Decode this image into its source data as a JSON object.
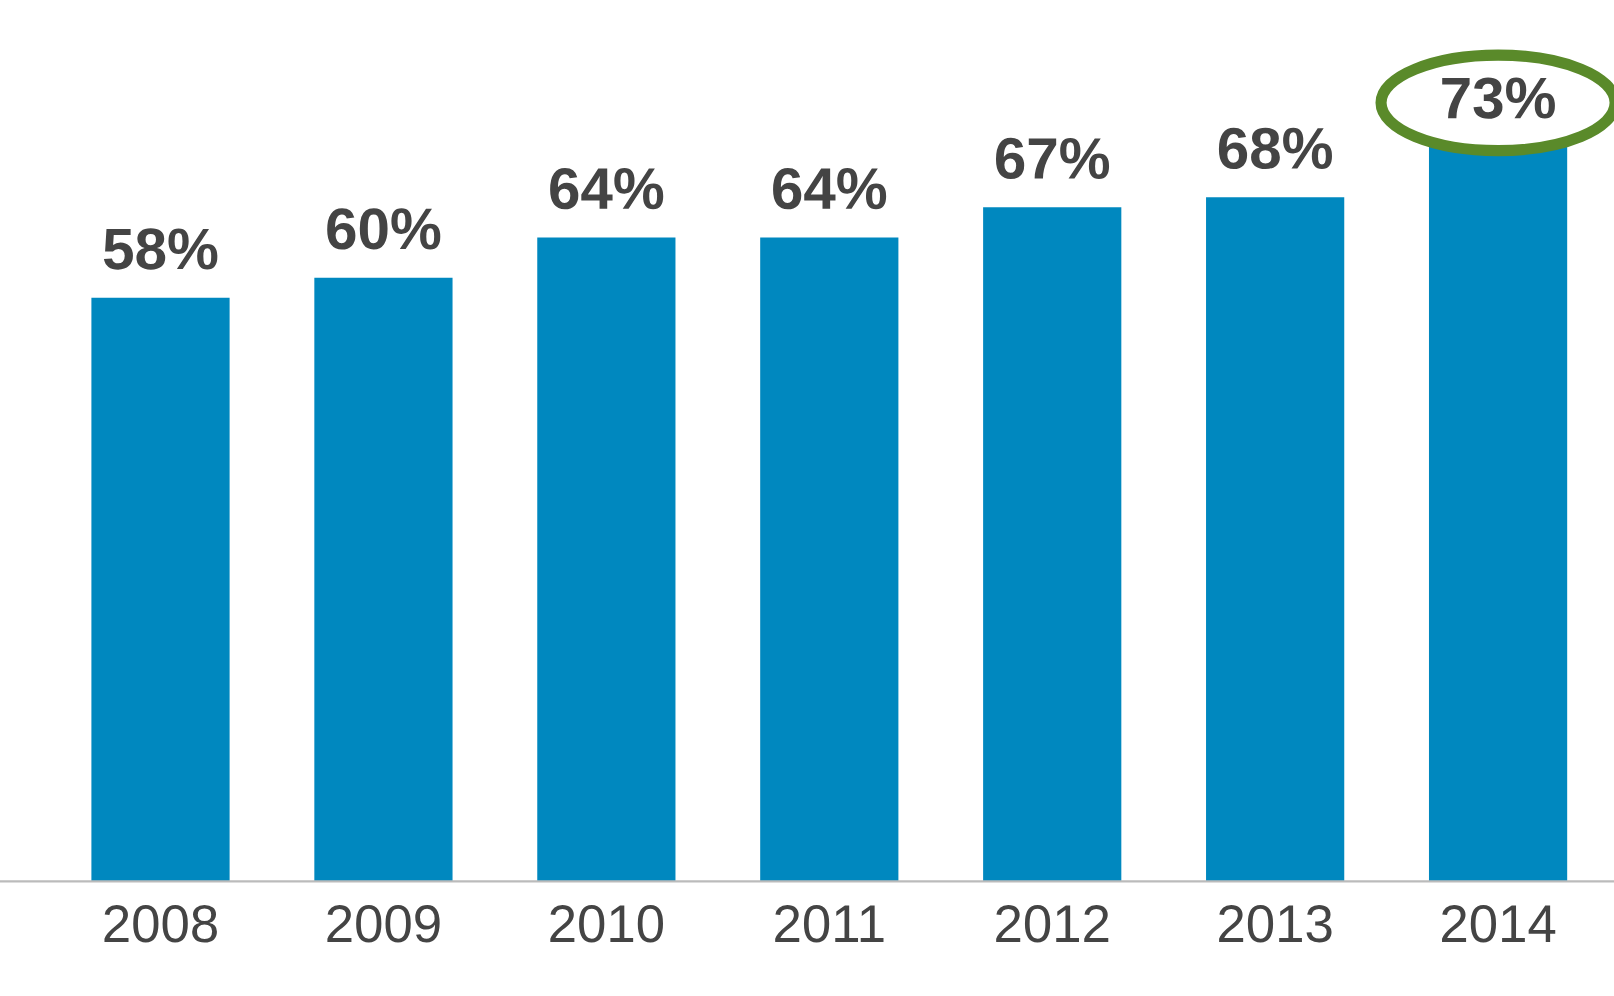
{
  "chart_data": {
    "type": "bar",
    "categories": [
      "2008",
      "2009",
      "2010",
      "2011",
      "2012",
      "2013",
      "2014"
    ],
    "values": [
      58,
      60,
      64,
      64,
      67,
      68,
      73
    ],
    "value_labels": [
      "58%",
      "60%",
      "64%",
      "64%",
      "67%",
      "68%",
      "73%"
    ],
    "color": "#0088bf"
  }
}
